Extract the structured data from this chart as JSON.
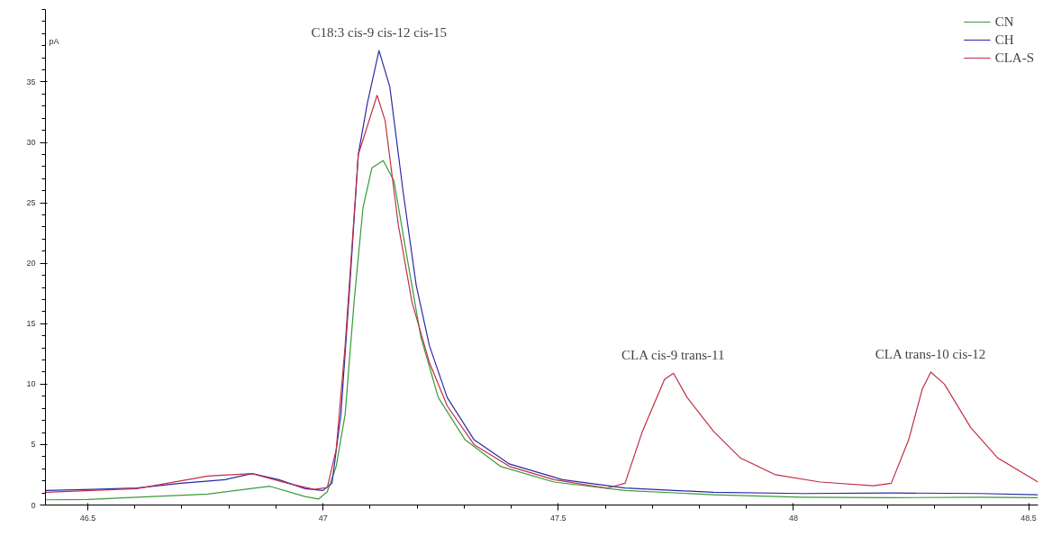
{
  "chart_data": {
    "type": "line",
    "ylabel": "pA",
    "xlim": [
      46.41,
      48.52
    ],
    "ylim": [
      0,
      41
    ],
    "xticks": [
      46.5,
      47,
      47.5,
      48,
      48.5
    ],
    "yticks": [
      0,
      5,
      10,
      15,
      20,
      25,
      30,
      35
    ],
    "grid": false,
    "legend": "top right",
    "marker": "none",
    "line_style": "solid",
    "series": [
      {
        "name": "CN",
        "color": "#3a9a3a",
        "x": [
          46.411,
          46.5,
          46.604,
          46.755,
          46.887,
          46.962,
          46.991,
          47.009,
          47.028,
          47.047,
          47.066,
          47.085,
          47.104,
          47.128,
          47.151,
          47.179,
          47.208,
          47.245,
          47.302,
          47.377,
          47.491,
          47.642,
          47.83,
          48.019,
          48.208,
          48.396,
          48.52
        ],
        "values": [
          0.43,
          0.45,
          0.65,
          0.9,
          1.55,
          0.7,
          0.5,
          1.1,
          3.2,
          7.5,
          16.8,
          24.6,
          27.9,
          28.5,
          26.8,
          20.4,
          13.9,
          8.9,
          5.4,
          3.2,
          1.9,
          1.2,
          0.85,
          0.65,
          0.6,
          0.65,
          0.6
        ]
      },
      {
        "name": "CH",
        "color": "#2a2aa8",
        "x": [
          46.411,
          46.509,
          46.604,
          46.698,
          46.792,
          46.849,
          46.906,
          46.962,
          47.0,
          47.019,
          47.038,
          47.057,
          47.075,
          47.094,
          47.119,
          47.142,
          47.17,
          47.198,
          47.226,
          47.264,
          47.321,
          47.396,
          47.509,
          47.642,
          47.83,
          48.019,
          48.208,
          48.396,
          48.52
        ],
        "values": [
          1.2,
          1.3,
          1.4,
          1.8,
          2.1,
          2.6,
          2.1,
          1.35,
          1.2,
          1.8,
          7.5,
          18.2,
          29,
          33.2,
          37.6,
          34.6,
          26,
          18.2,
          13.2,
          8.9,
          5.4,
          3.4,
          2.1,
          1.4,
          1.05,
          0.95,
          1.0,
          0.95,
          0.85
        ]
      },
      {
        "name": "CLA-S",
        "color": "#c03048",
        "x": [
          46.411,
          46.604,
          46.755,
          46.849,
          46.925,
          46.981,
          47.009,
          47.028,
          47.047,
          47.075,
          47.115,
          47.132,
          47.16,
          47.189,
          47.226,
          47.264,
          47.321,
          47.396,
          47.491,
          47.604,
          47.642,
          47.679,
          47.726,
          47.745,
          47.774,
          47.83,
          47.887,
          47.962,
          48.057,
          48.17,
          48.208,
          48.245,
          48.274,
          48.292,
          48.321,
          48.377,
          48.434,
          48.52
        ],
        "values": [
          1.05,
          1.35,
          2.4,
          2.6,
          1.8,
          1.3,
          1.45,
          4.6,
          13.2,
          29,
          33.9,
          31.8,
          23.2,
          16.8,
          11.8,
          8.2,
          5.0,
          3.2,
          2.1,
          1.4,
          1.8,
          6.1,
          10.4,
          10.9,
          8.9,
          6.1,
          3.9,
          2.5,
          1.9,
          1.6,
          1.8,
          5.4,
          9.6,
          11.0,
          10.0,
          6.4,
          3.9,
          1.9
        ]
      }
    ],
    "annotations": [
      {
        "text": "C18:3 cis-9 cis-12 cis-15",
        "x": 47.119,
        "y": 37.6
      },
      {
        "text": "CLA cis-9 trans-11",
        "x": 47.745,
        "y": 10.9
      },
      {
        "text": "CLA trans-10 cis-12",
        "x": 48.292,
        "y": 11.0
      }
    ]
  }
}
